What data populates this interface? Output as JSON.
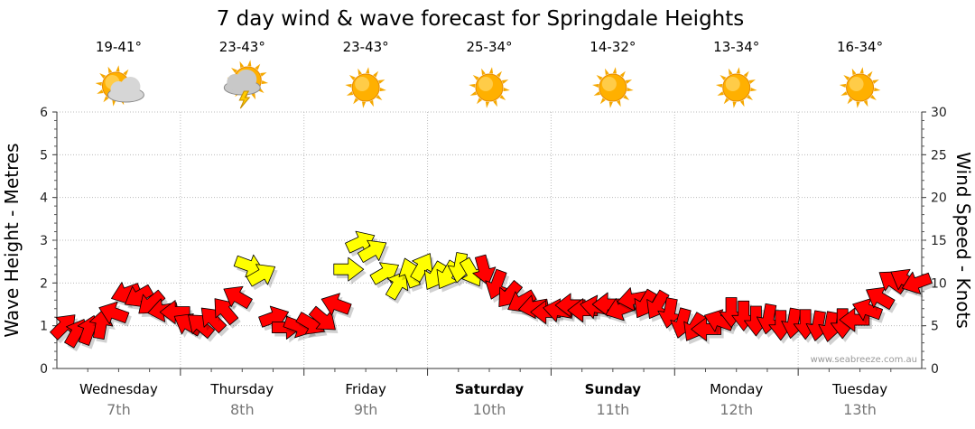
{
  "chart_data": {
    "type": "line",
    "title": "7 day wind & wave forecast for Springdale Heights",
    "ylabel_left": "Wave Height - Metres",
    "ylabel_right": "Wind Speed - Knots",
    "ylim_left": [
      0,
      6
    ],
    "yticks_left": [
      "0",
      "1",
      "2",
      "3",
      "4",
      "5",
      "6"
    ],
    "ylim_right": [
      0,
      30
    ],
    "yticks_right": [
      "0",
      "5",
      "10",
      "15",
      "20",
      "25",
      "30"
    ],
    "grid": true,
    "days": [
      {
        "name": "Wednesday",
        "date": "7th",
        "temp": "19-41°",
        "icon": "partly-cloudy-icon",
        "bold": false
      },
      {
        "name": "Thursday",
        "date": "8th",
        "temp": "23-43°",
        "icon": "thunderstorm-icon",
        "bold": false
      },
      {
        "name": "Friday",
        "date": "9th",
        "temp": "23-43°",
        "icon": "sunny-icon",
        "bold": false
      },
      {
        "name": "Saturday",
        "date": "10th",
        "temp": "25-34°",
        "icon": "sunny-icon",
        "bold": true
      },
      {
        "name": "Sunday",
        "date": "11th",
        "temp": "14-32°",
        "icon": "sunny-icon",
        "bold": true
      },
      {
        "name": "Monday",
        "date": "12th",
        "temp": "13-34°",
        "icon": "sunny-icon",
        "bold": false
      },
      {
        "name": "Tuesday",
        "date": "13th",
        "temp": "16-34°",
        "icon": "sunny-icon",
        "bold": false
      }
    ],
    "wind_series": {
      "units": "knots",
      "x_days": [
        0,
        0.1,
        0.2,
        0.3,
        0.4,
        0.5,
        0.6,
        0.7,
        0.8,
        0.9,
        1.0,
        1.1,
        1.2,
        1.3,
        1.4,
        1.5,
        1.6,
        1.7,
        1.8,
        1.9,
        2.0,
        2.1,
        2.2,
        2.3,
        2.4,
        2.5,
        2.6,
        2.7,
        2.8,
        2.9,
        3.0,
        3.1,
        3.2,
        3.3,
        3.4,
        3.5,
        3.6,
        3.7,
        3.8,
        3.9,
        4.0,
        4.1,
        4.2,
        4.3,
        4.4,
        4.5,
        4.6,
        4.7,
        4.8,
        4.9,
        5.0,
        5.1,
        5.2,
        5.3,
        5.4,
        5.5,
        5.6,
        5.7,
        5.8,
        5.9,
        6.0,
        6.1,
        6.2,
        6.3,
        6.4,
        6.5,
        6.6,
        6.7,
        6.8,
        6.9
      ],
      "speed": [
        5,
        4.2,
        4.5,
        5.2,
        6.5,
        8.8,
        8.4,
        7.6,
        6.8,
        6.6,
        5.2,
        5.1,
        5.8,
        6.8,
        8.4,
        12,
        11,
        6,
        4.8,
        4.9,
        5.2,
        5.7,
        7.5,
        11.6,
        14.8,
        13.8,
        11.2,
        9.8,
        11.2,
        11.9,
        10.8,
        10.9,
        11.8,
        11.2,
        11.5,
        9.8,
        8.6,
        7.8,
        7.2,
        6.6,
        6.8,
        7.4,
        6.8,
        7.2,
        7.5,
        6.9,
        8.1,
        7.5,
        7.4,
        6.5,
        5.3,
        4.8,
        4.6,
        5.6,
        6.6,
        6.2,
        5.6,
        5.8,
        5.1,
        5.3,
        5.2,
        5.0,
        4.9,
        5.3,
        5.7,
        6.9,
        8.3,
        10.2,
        10.4,
        10.0
      ],
      "direction_deg": [
        315,
        300,
        290,
        280,
        200,
        160,
        150,
        140,
        170,
        180,
        210,
        220,
        225,
        230,
        210,
        20,
        330,
        340,
        0,
        20,
        30,
        40,
        200,
        0,
        335,
        330,
        330,
        300,
        250,
        300,
        120,
        120,
        100,
        60,
        75,
        110,
        130,
        150,
        170,
        180,
        190,
        180,
        180,
        190,
        180,
        160,
        170,
        120,
        120,
        100,
        105,
        120,
        180,
        200,
        90,
        90,
        90,
        100,
        90,
        100,
        90,
        100,
        100,
        90,
        180,
        200,
        210,
        215,
        210,
        160
      ],
      "yellow_flags": [
        0,
        0,
        0,
        0,
        0,
        0,
        0,
        0,
        0,
        0,
        0,
        0,
        0,
        0,
        0,
        1,
        1,
        0,
        0,
        0,
        0,
        0,
        0,
        1,
        1,
        1,
        1,
        1,
        1,
        1,
        1,
        1,
        1,
        1,
        0,
        0,
        0,
        0,
        0,
        0,
        0,
        0,
        0,
        0,
        0,
        0,
        0,
        0,
        0,
        0,
        0,
        0,
        0,
        0,
        0,
        0,
        0,
        0,
        0,
        0,
        0,
        0,
        0,
        0,
        0,
        0,
        0,
        0,
        0,
        0
      ]
    },
    "colors": {
      "wind_arrow": "#ff0000",
      "strong_wind_arrow": "#ffff00",
      "arrow_outline": "#000000",
      "grid": "#bbbbbb"
    },
    "credit": "www.seabreeze.com.au"
  }
}
